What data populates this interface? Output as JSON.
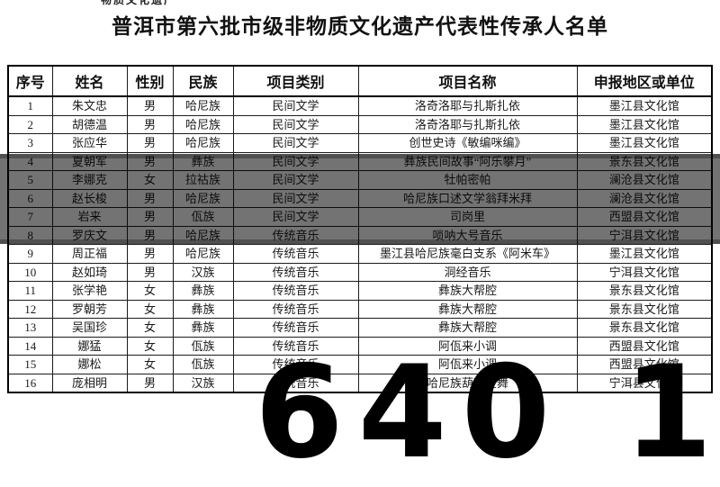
{
  "page": {
    "title": "普洱市第六批市级非物质文化遗产代表性传承人名单"
  },
  "watermark": {
    "text": "640 1"
  },
  "artifact": {
    "text": "物质文化遗产"
  },
  "table": {
    "headers": [
      "序号",
      "姓名",
      "性别",
      "民族",
      "项目类别",
      "项目名称",
      "申报地区或单位"
    ],
    "rows": [
      [
        "1",
        "朱文忠",
        "男",
        "哈尼族",
        "民间文学",
        "洛奇洛耶与扎斯扎依",
        "墨江县文化馆"
      ],
      [
        "2",
        "胡德温",
        "男",
        "哈尼族",
        "民间文学",
        "洛奇洛耶与扎斯扎依",
        "墨江县文化馆"
      ],
      [
        "3",
        "张应华",
        "男",
        "哈尼族",
        "民间文学",
        "创世史诗《敏编咪编》",
        "墨江县文化馆"
      ],
      [
        "4",
        "夏朝军",
        "男",
        "彝族",
        "民间文学",
        "彝族民间故事“阿乐攀月”",
        "景东县文化馆"
      ],
      [
        "5",
        "李娜克",
        "女",
        "拉祜族",
        "民间文学",
        "牡帕密帕",
        "澜沧县文化馆"
      ],
      [
        "6",
        "赵长梭",
        "男",
        "哈尼族",
        "民间文学",
        "哈尼族口述文学翁拜米拜",
        "澜沧县文化馆"
      ],
      [
        "7",
        "岩来",
        "男",
        "佤族",
        "民间文学",
        "司岗里",
        "西盟县文化馆"
      ],
      [
        "8",
        "罗庆文",
        "男",
        "哈尼族",
        "传统音乐",
        "唢呐大号音乐",
        "宁洱县文化馆"
      ],
      [
        "9",
        "周正福",
        "男",
        "哈尼族",
        "传统音乐",
        "墨江县哈尼族毫白支系《阿米车》",
        "墨江县文化馆"
      ],
      [
        "10",
        "赵如琦",
        "男",
        "汉族",
        "传统音乐",
        "洞经音乐",
        "宁洱县文化馆"
      ],
      [
        "11",
        "张学艳",
        "女",
        "彝族",
        "传统音乐",
        "彝族大帮腔",
        "景东县文化馆"
      ],
      [
        "12",
        "罗朝芳",
        "女",
        "彝族",
        "传统音乐",
        "彝族大帮腔",
        "景东县文化馆"
      ],
      [
        "13",
        "吴国珍",
        "女",
        "彝族",
        "传统音乐",
        "彝族大帮腔",
        "景东县文化馆"
      ],
      [
        "14",
        "娜猛",
        "女",
        "佤族",
        "传统音乐",
        "阿佤来小调",
        "西盟县文化馆"
      ],
      [
        "15",
        "娜松",
        "女",
        "佤族",
        "传统音乐",
        "阿佤来小调",
        "西盟县文化馆"
      ],
      [
        "16",
        "庞相明",
        "男",
        "汉族",
        "传统音乐",
        "哈尼族葫芦笙舞",
        "宁洱县文化馆"
      ]
    ]
  }
}
